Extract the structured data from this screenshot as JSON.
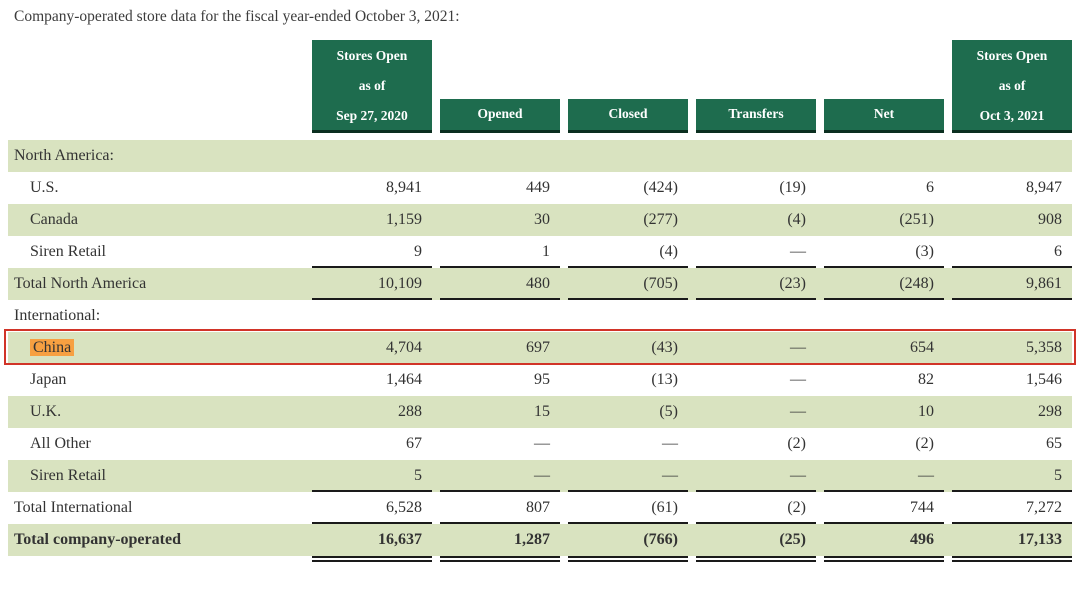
{
  "title": "Company-operated store data for the fiscal year-ended October 3, 2021:",
  "colors": {
    "header_green": "#1E6C4E",
    "header_border": "#0B2F20",
    "row_stripe": "#D9E3C0",
    "text": "#333333",
    "rule": "#1A1A1A",
    "highlight_red": "#D13428",
    "highlight_orange": "#F7A041"
  },
  "table": {
    "columns": [
      {
        "name": "stores-open-sep-27-2020",
        "lines": [
          "Stores Open",
          "as of",
          "Sep 27, 2020"
        ],
        "tall": true
      },
      {
        "name": "opened",
        "lines": [
          "Opened"
        ],
        "tall": false
      },
      {
        "name": "closed",
        "lines": [
          "Closed"
        ],
        "tall": false
      },
      {
        "name": "transfers",
        "lines": [
          "Transfers"
        ],
        "tall": false
      },
      {
        "name": "net",
        "lines": [
          "Net"
        ],
        "tall": false
      },
      {
        "name": "stores-open-oct-3-2021",
        "lines": [
          "Stores Open",
          "as of",
          "Oct 3, 2021"
        ],
        "tall": true
      }
    ],
    "rows": [
      {
        "label": "North America:",
        "section": true,
        "indent": false,
        "values": []
      },
      {
        "label": "U.S.",
        "indent": true,
        "values": [
          "8,941",
          "449",
          "(424)",
          "(19)",
          "6",
          "8,947"
        ]
      },
      {
        "label": "Canada",
        "indent": true,
        "values": [
          "1,159",
          "30",
          "(277)",
          "(4)",
          "(251)",
          "908"
        ]
      },
      {
        "label": "Siren Retail",
        "indent": true,
        "rule": "single",
        "values": [
          "9",
          "1",
          "(4)",
          "—",
          "(3)",
          "6"
        ]
      },
      {
        "label": "Total North America",
        "indent": false,
        "rule": "single",
        "values": [
          "10,109",
          "480",
          "(705)",
          "(23)",
          "(248)",
          "9,861"
        ]
      },
      {
        "label": "International:",
        "section": true,
        "indent": false,
        "values": []
      },
      {
        "label": "China",
        "indent": true,
        "row_highlight": true,
        "label_highlight": true,
        "values": [
          "4,704",
          "697",
          "(43)",
          "—",
          "654",
          "5,358"
        ]
      },
      {
        "label": "Japan",
        "indent": true,
        "values": [
          "1,464",
          "95",
          "(13)",
          "—",
          "82",
          "1,546"
        ]
      },
      {
        "label": "U.K.",
        "indent": true,
        "values": [
          "288",
          "15",
          "(5)",
          "—",
          "10",
          "298"
        ]
      },
      {
        "label": "All Other",
        "indent": true,
        "values": [
          "67",
          "—",
          "—",
          "(2)",
          "(2)",
          "65"
        ]
      },
      {
        "label": "Siren Retail",
        "indent": true,
        "rule": "single",
        "values": [
          "5",
          "—",
          "—",
          "—",
          "—",
          "5"
        ]
      },
      {
        "label": "Total International",
        "indent": false,
        "rule": "single",
        "values": [
          "6,528",
          "807",
          "(61)",
          "(2)",
          "744",
          "7,272"
        ]
      },
      {
        "label": "Total company-operated",
        "indent": false,
        "bold": true,
        "rule": "double",
        "values": [
          "16,637",
          "1,287",
          "(766)",
          "(25)",
          "496",
          "17,133"
        ]
      }
    ]
  }
}
